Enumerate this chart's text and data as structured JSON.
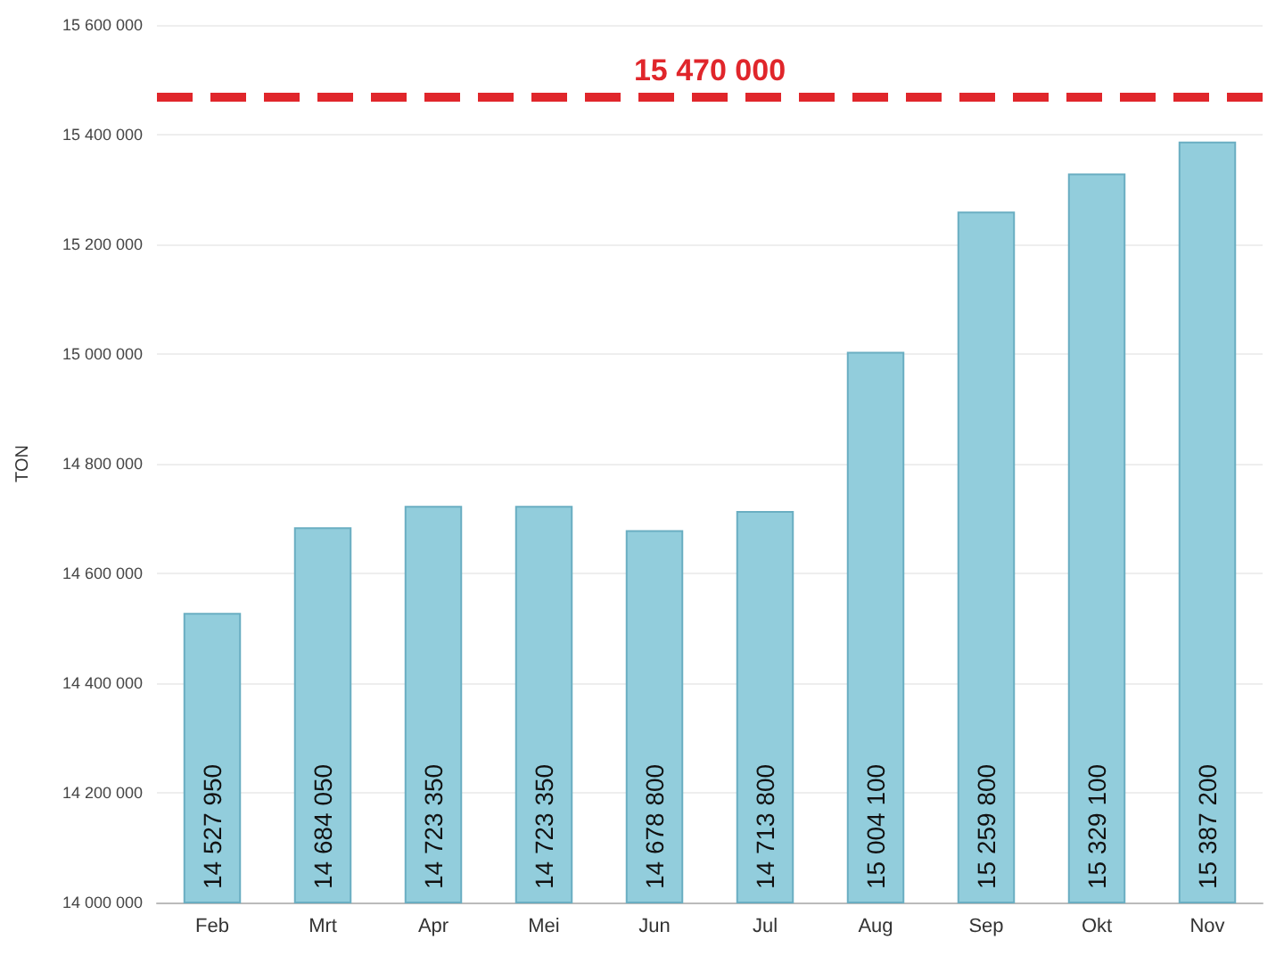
{
  "chart_data": {
    "type": "bar",
    "ylabel": "TON",
    "categories": [
      "Feb",
      "Mrt",
      "Apr",
      "Mei",
      "Jun",
      "Jul",
      "Aug",
      "Sep",
      "Okt",
      "Nov"
    ],
    "values": [
      14527950,
      14684050,
      14723350,
      14723350,
      14678800,
      14713800,
      15004100,
      15259800,
      15329100,
      15387200
    ],
    "value_labels": [
      "14 527 950",
      "14 684 050",
      "14 723 350",
      "14 723 350",
      "14 678 800",
      "14 713 800",
      "15 004 100",
      "15 259 800",
      "15 329 100",
      "15 387 200"
    ],
    "color": "#92cddc",
    "ylim": [
      14000000,
      15600000
    ],
    "yticks": [
      {
        "value": 14000000,
        "label": "14 000 000"
      },
      {
        "value": 14200000,
        "label": "14 200 000"
      },
      {
        "value": 14400000,
        "label": "14 400 000"
      },
      {
        "value": 14600000,
        "label": "14 600 000"
      },
      {
        "value": 14800000,
        "label": "14 800 000"
      },
      {
        "value": 15000000,
        "label": "15 000 000"
      },
      {
        "value": 15200000,
        "label": "15 200 000"
      },
      {
        "value": 15400000,
        "label": "15 400 000"
      },
      {
        "value": 15600000,
        "label": "15 600 000"
      }
    ],
    "ref_lines": [
      {
        "axis": "y",
        "value": 15470000,
        "label": "15 470 000",
        "color": "#e0262b",
        "line_style": "dashed"
      }
    ],
    "grid": "y"
  }
}
